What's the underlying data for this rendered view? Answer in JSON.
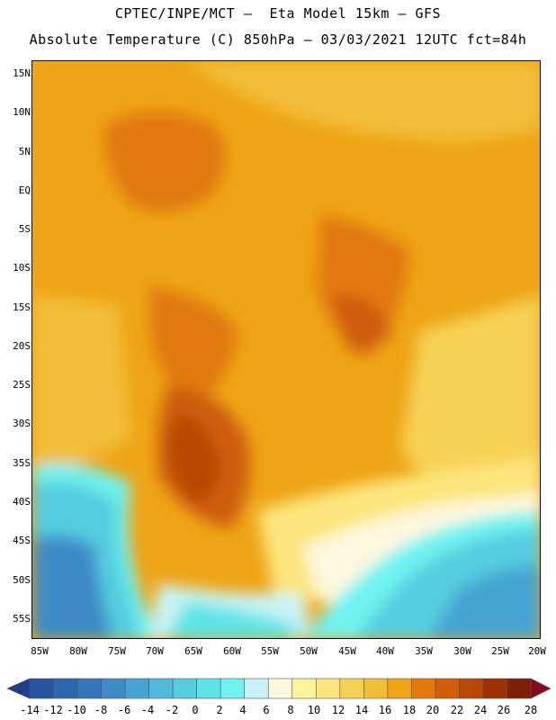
{
  "header": {
    "title_line1": "CPTEC/INPE/MCT –  Eta Model 15km – GFS",
    "title_line2": "Absolute Temperature (C) 850hPa – 03/03/2021 12UTC fct=84h"
  },
  "map": {
    "lat_labels": [
      "15N",
      "10N",
      "5N",
      "EQ",
      "5S",
      "10S",
      "15S",
      "20S",
      "25S",
      "30S",
      "35S",
      "40S",
      "45S",
      "50S",
      "55S"
    ],
    "lon_labels": [
      "85W",
      "80W",
      "75W",
      "70W",
      "65W",
      "60W",
      "55W",
      "50W",
      "45W",
      "40W",
      "35W",
      "30W",
      "25W",
      "20W"
    ]
  },
  "colorbar": {
    "labels": [
      "-14",
      "-12",
      "-10",
      "-8",
      "-6",
      "-4",
      "-2",
      "0",
      "2",
      "4",
      "6",
      "8",
      "10",
      "12",
      "14",
      "16",
      "18",
      "20",
      "22",
      "24",
      "26",
      "28"
    ],
    "colors": [
      "#1e3f8c",
      "#2753a0",
      "#2f66b0",
      "#3576bd",
      "#3d8bc7",
      "#45a4d2",
      "#4fbad9",
      "#55cde0",
      "#5ee3e6",
      "#6ff2f0",
      "#c8f3f5",
      "#fff8df",
      "#fdf39a",
      "#fbe57c",
      "#f6d052",
      "#f2bd38",
      "#eea416",
      "#e2790d",
      "#d05e0a",
      "#b84a06",
      "#9c3104",
      "#7c1f04",
      "#8a0a1e"
    ]
  }
}
